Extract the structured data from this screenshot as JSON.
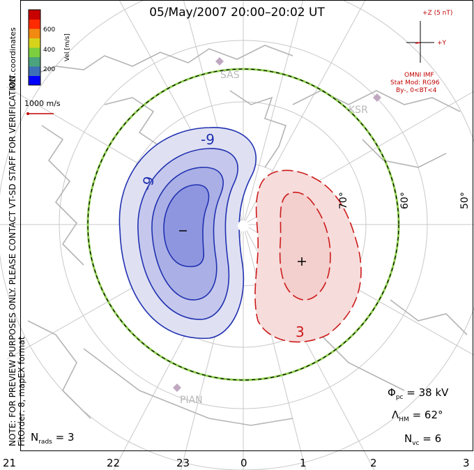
{
  "title": "05/May/2007 20:00–20:02 UT",
  "side_note": {
    "line1": "NOTE: FOR PREVIEW PURPOSES ONLY. PLEASE CONTACT VT-SD STAFF FOR VERIFICATION.",
    "line2": "FitOrder: 8, mapEX format"
  },
  "coordinates_label": "MLT coordinates",
  "colorbar": {
    "label": "Vel [m/s]",
    "ticks": [
      "600",
      "400",
      "200"
    ],
    "colors": [
      "#0000ff",
      "#3d6fb6",
      "#4aa37d",
      "#7ccf3e",
      "#d7d31b",
      "#f28a12",
      "#ff2a00",
      "#c80000"
    ]
  },
  "scale_vector": {
    "label": "1000 m/s",
    "color": "#c00000"
  },
  "imf": {
    "z_label": "+Z (5 nT)",
    "y_label": "+Y",
    "source": "OMNI IMF",
    "model": "Stat Mod: RG96",
    "bins": "By-, 0<BT<4",
    "color": "#c00000"
  },
  "stations": [
    "SAS",
    "KSR",
    "PIAN"
  ],
  "latitude_labels": [
    "70°",
    "60°",
    "50°"
  ],
  "contour_labels": [
    "-9",
    "-9",
    "3"
  ],
  "extrema_markers": {
    "min": "−",
    "max": "+"
  },
  "stats": {
    "phi_pc": "38 kV",
    "lambda_hm": "62°",
    "n_vc": "6",
    "n_rads": "3"
  },
  "stat_labels": {
    "phi_pc": "Φ",
    "phi_sub": "pc",
    "lambda_hm": "Λ",
    "lambda_sub": "HM",
    "n_vc": "N",
    "n_vc_sub": "vc",
    "n_rads": "N",
    "n_rads_sub": "rads"
  },
  "mlt_ticks": [
    "21",
    "22",
    "23",
    "0",
    "1",
    "2",
    "3"
  ],
  "colors": {
    "negative_cell": "#2030b0",
    "positive_cell": "#cc1a1a",
    "grid": "#c8c8c8",
    "coast": "#b0b0b0",
    "hm_boundary": "#8fd14f"
  }
}
